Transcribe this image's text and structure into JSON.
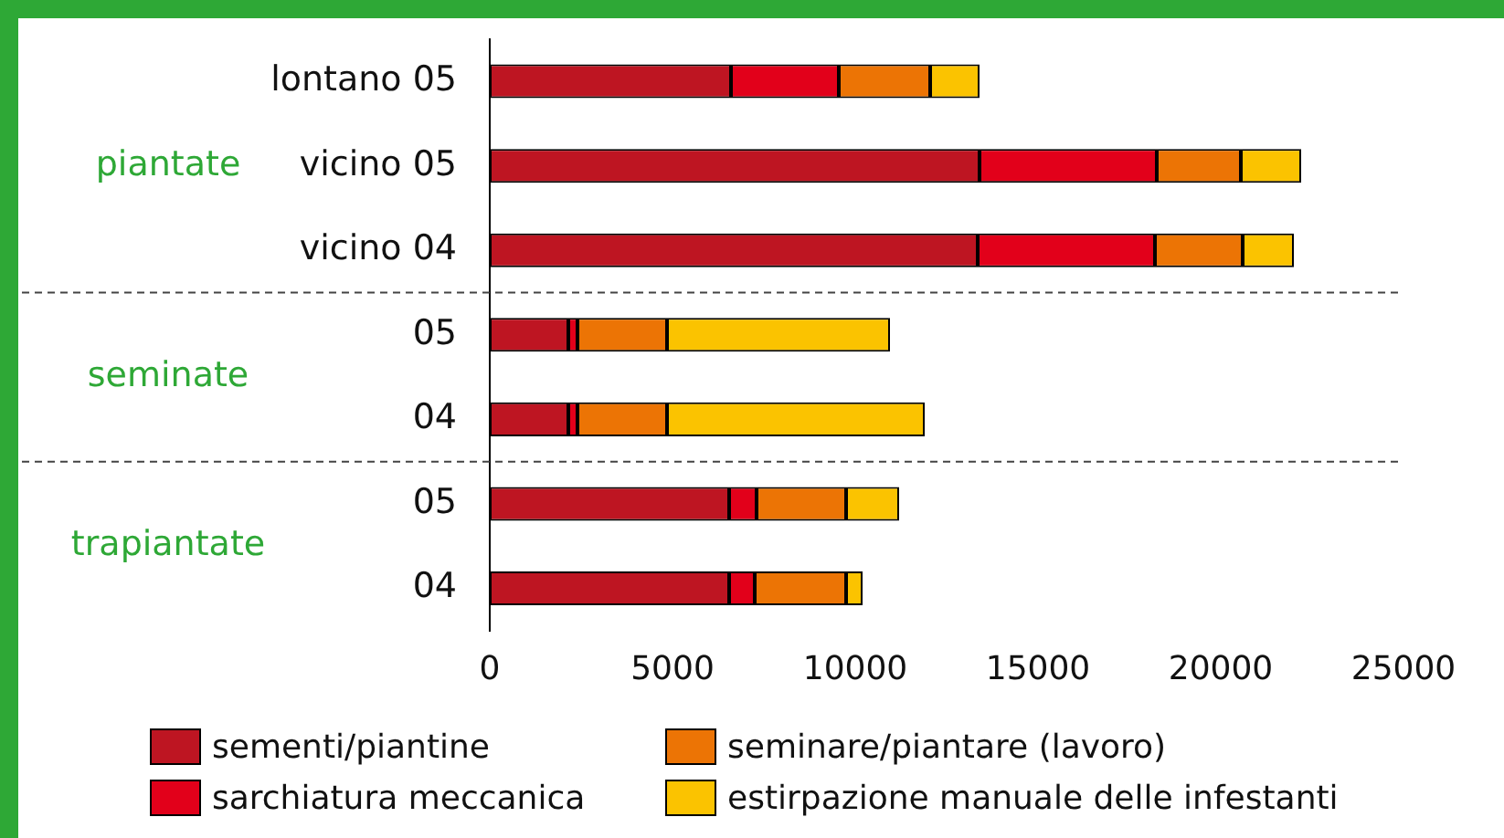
{
  "chart_data": {
    "type": "bar",
    "orientation": "horizontal",
    "stacked": true,
    "categories": [
      "lontano 05",
      "vicino 05",
      "vicino 04",
      "05",
      "04",
      "05",
      "04"
    ],
    "series": [
      {
        "name": "sementi/piantine",
        "color": "#be1522",
        "values": [
          6600,
          13400,
          13350,
          2150,
          2150,
          6550,
          6550
        ]
      },
      {
        "name": "sarchiatura meccanica",
        "color": "#e2001a",
        "values": [
          2950,
          4850,
          4850,
          250,
          250,
          750,
          700
        ]
      },
      {
        "name": "seminare/piantare (lavoro)",
        "color": "#ec7405",
        "values": [
          2500,
          2300,
          2400,
          2450,
          2450,
          2450,
          2500
        ]
      },
      {
        "name": "estirpazione manuale delle infestanti",
        "color": "#fbc300",
        "values": [
          1350,
          1650,
          1400,
          6100,
          7050,
          1450,
          450
        ]
      }
    ],
    "xlim": [
      0,
      25000
    ],
    "xticks": [
      0,
      5000,
      10000,
      15000,
      20000,
      25000
    ],
    "legend": "bottom",
    "annotations": [
      "piantate",
      "seminate",
      "trapiantate"
    ]
  }
}
